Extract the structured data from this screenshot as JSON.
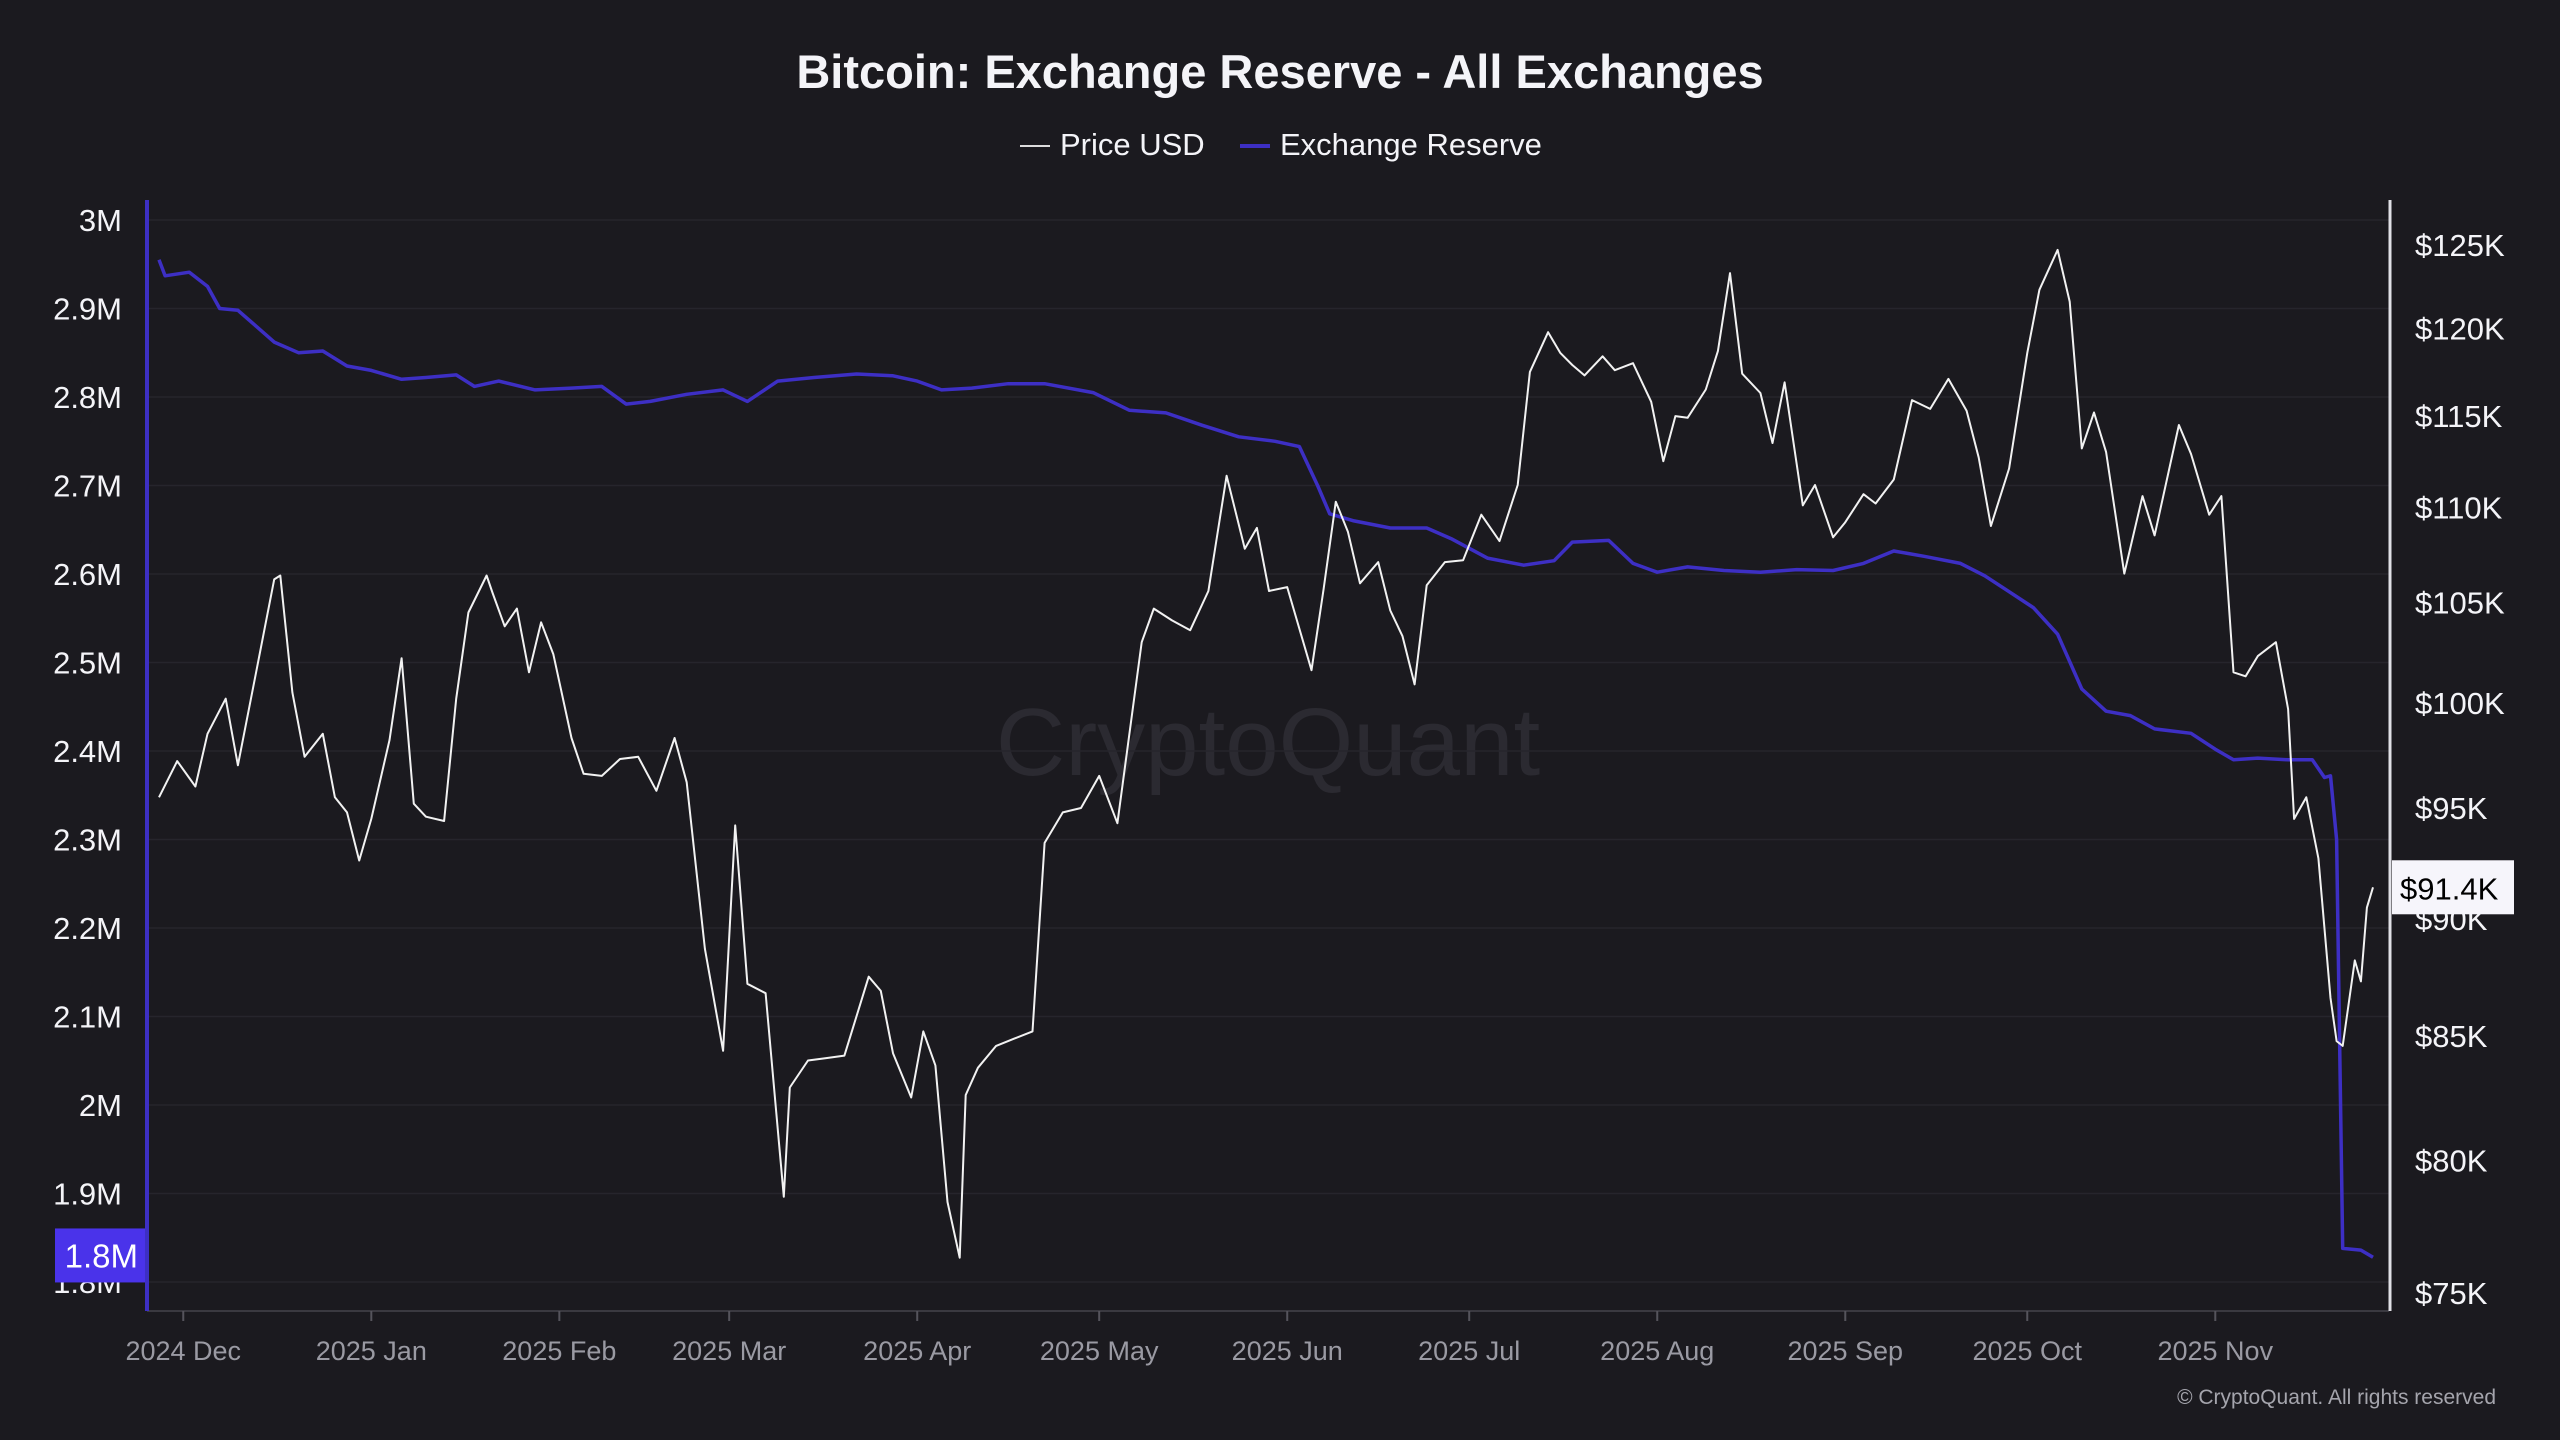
{
  "chart_data": {
    "type": "line",
    "title": "Bitcoin: Exchange Reserve - All Exchanges",
    "legend": {
      "placement": "top-center",
      "items": [
        "Price USD",
        "Exchange Reserve"
      ]
    },
    "watermark": "CryptoQuant",
    "copyright": "© CryptoQuant. All rights reserved",
    "colors": {
      "background": "#1b1a1f",
      "price": "#f2f2f2",
      "reserve": "#3d2fc4",
      "reserve_badge": "#4a33ea",
      "grid": "#2a2930"
    },
    "grid": true,
    "x_axis": {
      "range": [
        "2024-11-27",
        "2025-11-27"
      ],
      "ticks": [
        {
          "date": "2024-12-01",
          "label": "2024 Dec"
        },
        {
          "date": "2025-01-01",
          "label": "2025 Jan"
        },
        {
          "date": "2025-02-01",
          "label": "2025 Feb"
        },
        {
          "date": "2025-03-01",
          "label": "2025 Mar"
        },
        {
          "date": "2025-04-01",
          "label": "2025 Apr"
        },
        {
          "date": "2025-05-01",
          "label": "2025 May"
        },
        {
          "date": "2025-06-01",
          "label": "2025 Jun"
        },
        {
          "date": "2025-07-01",
          "label": "2025 Jul"
        },
        {
          "date": "2025-08-01",
          "label": "2025 Aug"
        },
        {
          "date": "2025-09-01",
          "label": "2025 Sep"
        },
        {
          "date": "2025-10-01",
          "label": "2025 Oct"
        },
        {
          "date": "2025-11-01",
          "label": "2025 Nov"
        }
      ]
    },
    "y_left": {
      "range": [
        1.78,
        3.02
      ],
      "scale": "linear",
      "unit": "M",
      "ticks": [
        "3M",
        "2.9M",
        "2.8M",
        "2.7M",
        "2.6M",
        "2.5M",
        "2.4M",
        "2.3M",
        "2.2M",
        "2.1M",
        "2M",
        "1.9M",
        "1.8M"
      ],
      "tick_values": [
        3,
        2.9,
        2.8,
        2.7,
        2.6,
        2.5,
        2.4,
        2.3,
        2.2,
        2.1,
        2,
        1.9,
        1.8
      ],
      "current_label": "1.8M",
      "current_value": 1.83
    },
    "y_right": {
      "range": [
        74.8,
        127
      ],
      "scale": "log",
      "unit": "K USD",
      "ticks": [
        "$125K",
        "$120K",
        "$115K",
        "$110K",
        "$105K",
        "$100K",
        "$95K",
        "$90K",
        "$85K",
        "$80K",
        "$75K"
      ],
      "tick_values": [
        125,
        120,
        115,
        110,
        105,
        100,
        95,
        90,
        85,
        80,
        75
      ],
      "current_label": "$91.4K",
      "current_value": 91.4
    },
    "series": [
      {
        "name": "Price USD",
        "axis": "right",
        "points": [
          [
            "2024-11-27",
            95.5
          ],
          [
            "2024-11-30",
            97.2
          ],
          [
            "2024-12-03",
            96.0
          ],
          [
            "2024-12-05",
            98.5
          ],
          [
            "2024-12-08",
            100.2
          ],
          [
            "2024-12-10",
            97.0
          ],
          [
            "2024-12-13",
            101.5
          ],
          [
            "2024-12-16",
            106.2
          ],
          [
            "2024-12-17",
            106.4
          ],
          [
            "2024-12-19",
            100.5
          ],
          [
            "2024-12-21",
            97.4
          ],
          [
            "2024-12-24",
            98.5
          ],
          [
            "2024-12-26",
            95.5
          ],
          [
            "2024-12-28",
            94.8
          ],
          [
            "2024-12-30",
            92.6
          ],
          [
            "2025-01-01",
            94.5
          ],
          [
            "2025-01-04",
            98.2
          ],
          [
            "2025-01-06",
            102.2
          ],
          [
            "2025-01-08",
            95.2
          ],
          [
            "2025-01-10",
            94.6
          ],
          [
            "2025-01-13",
            94.4
          ],
          [
            "2025-01-15",
            100.2
          ],
          [
            "2025-01-17",
            104.5
          ],
          [
            "2025-01-20",
            106.4
          ],
          [
            "2025-01-21",
            105.5
          ],
          [
            "2025-01-23",
            103.8
          ],
          [
            "2025-01-25",
            104.7
          ],
          [
            "2025-01-27",
            101.5
          ],
          [
            "2025-01-29",
            104.0
          ],
          [
            "2025-01-31",
            102.4
          ],
          [
            "2025-02-03",
            98.3
          ],
          [
            "2025-02-05",
            96.6
          ],
          [
            "2025-02-08",
            96.5
          ],
          [
            "2025-02-11",
            97.3
          ],
          [
            "2025-02-14",
            97.4
          ],
          [
            "2025-02-17",
            95.8
          ],
          [
            "2025-02-20",
            98.3
          ],
          [
            "2025-02-22",
            96.2
          ],
          [
            "2025-02-25",
            88.7
          ],
          [
            "2025-02-28",
            84.4
          ],
          [
            "2025-03-02",
            94.2
          ],
          [
            "2025-03-04",
            87.2
          ],
          [
            "2025-03-07",
            86.8
          ],
          [
            "2025-03-10",
            78.6
          ],
          [
            "2025-03-11",
            82.9
          ],
          [
            "2025-03-14",
            84.0
          ],
          [
            "2025-03-17",
            84.1
          ],
          [
            "2025-03-20",
            84.2
          ],
          [
            "2025-03-24",
            87.5
          ],
          [
            "2025-03-26",
            86.9
          ],
          [
            "2025-03-28",
            84.3
          ],
          [
            "2025-03-31",
            82.5
          ],
          [
            "2025-04-02",
            85.2
          ],
          [
            "2025-04-04",
            83.8
          ],
          [
            "2025-04-06",
            78.4
          ],
          [
            "2025-04-08",
            76.3
          ],
          [
            "2025-04-09",
            82.6
          ],
          [
            "2025-04-11",
            83.7
          ],
          [
            "2025-04-14",
            84.6
          ],
          [
            "2025-04-17",
            84.9
          ],
          [
            "2025-04-20",
            85.2
          ],
          [
            "2025-04-22",
            93.4
          ],
          [
            "2025-04-25",
            94.8
          ],
          [
            "2025-04-28",
            95.0
          ],
          [
            "2025-05-01",
            96.5
          ],
          [
            "2025-05-04",
            94.3
          ],
          [
            "2025-05-08",
            103.0
          ],
          [
            "2025-05-10",
            104.7
          ],
          [
            "2025-05-13",
            104.1
          ],
          [
            "2025-05-16",
            103.6
          ],
          [
            "2025-05-19",
            105.6
          ],
          [
            "2025-05-22",
            111.7
          ],
          [
            "2025-05-25",
            107.8
          ],
          [
            "2025-05-27",
            108.9
          ],
          [
            "2025-05-29",
            105.6
          ],
          [
            "2025-06-01",
            105.8
          ],
          [
            "2025-06-05",
            101.6
          ],
          [
            "2025-06-07",
            105.7
          ],
          [
            "2025-06-09",
            110.3
          ],
          [
            "2025-06-11",
            108.7
          ],
          [
            "2025-06-13",
            106.0
          ],
          [
            "2025-06-16",
            107.1
          ],
          [
            "2025-06-18",
            104.6
          ],
          [
            "2025-06-20",
            103.3
          ],
          [
            "2025-06-22",
            100.9
          ],
          [
            "2025-06-24",
            105.9
          ],
          [
            "2025-06-27",
            107.1
          ],
          [
            "2025-06-30",
            107.2
          ],
          [
            "2025-07-03",
            109.6
          ],
          [
            "2025-07-06",
            108.2
          ],
          [
            "2025-07-09",
            111.2
          ],
          [
            "2025-07-11",
            117.5
          ],
          [
            "2025-07-14",
            119.8
          ],
          [
            "2025-07-16",
            118.6
          ],
          [
            "2025-07-18",
            117.9
          ],
          [
            "2025-07-20",
            117.3
          ],
          [
            "2025-07-23",
            118.4
          ],
          [
            "2025-07-25",
            117.6
          ],
          [
            "2025-07-28",
            118.0
          ],
          [
            "2025-07-31",
            115.8
          ],
          [
            "2025-08-02",
            112.5
          ],
          [
            "2025-08-04",
            115.0
          ],
          [
            "2025-08-06",
            114.9
          ],
          [
            "2025-08-09",
            116.5
          ],
          [
            "2025-08-11",
            118.7
          ],
          [
            "2025-08-13",
            123.3
          ],
          [
            "2025-08-15",
            117.4
          ],
          [
            "2025-08-18",
            116.3
          ],
          [
            "2025-08-20",
            113.5
          ],
          [
            "2025-08-22",
            116.9
          ],
          [
            "2025-08-25",
            110.1
          ],
          [
            "2025-08-27",
            111.2
          ],
          [
            "2025-08-30",
            108.4
          ],
          [
            "2025-09-01",
            109.2
          ],
          [
            "2025-09-04",
            110.7
          ],
          [
            "2025-09-06",
            110.2
          ],
          [
            "2025-09-09",
            111.5
          ],
          [
            "2025-09-12",
            115.9
          ],
          [
            "2025-09-15",
            115.4
          ],
          [
            "2025-09-18",
            117.1
          ],
          [
            "2025-09-21",
            115.3
          ],
          [
            "2025-09-23",
            112.7
          ],
          [
            "2025-09-25",
            109.0
          ],
          [
            "2025-09-28",
            112.1
          ],
          [
            "2025-10-01",
            118.6
          ],
          [
            "2025-10-03",
            122.3
          ],
          [
            "2025-10-06",
            124.7
          ],
          [
            "2025-10-08",
            121.6
          ],
          [
            "2025-10-10",
            113.2
          ],
          [
            "2025-10-12",
            115.2
          ],
          [
            "2025-10-14",
            113.0
          ],
          [
            "2025-10-17",
            106.5
          ],
          [
            "2025-10-20",
            110.6
          ],
          [
            "2025-10-22",
            108.5
          ],
          [
            "2025-10-26",
            114.5
          ],
          [
            "2025-10-28",
            112.9
          ],
          [
            "2025-10-31",
            109.6
          ],
          [
            "2025-11-02",
            110.6
          ],
          [
            "2025-11-04",
            101.5
          ],
          [
            "2025-11-06",
            101.3
          ],
          [
            "2025-11-08",
            102.3
          ],
          [
            "2025-11-11",
            103.0
          ],
          [
            "2025-11-13",
            99.7
          ],
          [
            "2025-11-14",
            94.5
          ],
          [
            "2025-11-16",
            95.5
          ],
          [
            "2025-11-18",
            92.7
          ],
          [
            "2025-11-20",
            86.6
          ],
          [
            "2025-11-21",
            84.8
          ],
          [
            "2025-11-22",
            84.6
          ],
          [
            "2025-11-24",
            88.2
          ],
          [
            "2025-11-25",
            87.3
          ],
          [
            "2025-11-26",
            90.5
          ],
          [
            "2025-11-27",
            91.4
          ]
        ]
      },
      {
        "name": "Exchange Reserve",
        "axis": "left",
        "points": [
          [
            "2024-11-27",
            2.955
          ],
          [
            "2024-11-28",
            2.937
          ],
          [
            "2024-12-02",
            2.941
          ],
          [
            "2024-12-05",
            2.925
          ],
          [
            "2024-12-07",
            2.9
          ],
          [
            "2024-12-10",
            2.898
          ],
          [
            "2024-12-13",
            2.88
          ],
          [
            "2024-12-16",
            2.862
          ],
          [
            "2024-12-20",
            2.85
          ],
          [
            "2024-12-24",
            2.852
          ],
          [
            "2024-12-28",
            2.835
          ],
          [
            "2025-01-01",
            2.83
          ],
          [
            "2025-01-06",
            2.82
          ],
          [
            "2025-01-10",
            2.822
          ],
          [
            "2025-01-15",
            2.825
          ],
          [
            "2025-01-18",
            2.812
          ],
          [
            "2025-01-22",
            2.818
          ],
          [
            "2025-01-28",
            2.808
          ],
          [
            "2025-02-03",
            2.81
          ],
          [
            "2025-02-08",
            2.812
          ],
          [
            "2025-02-12",
            2.792
          ],
          [
            "2025-02-16",
            2.795
          ],
          [
            "2025-02-22",
            2.803
          ],
          [
            "2025-02-28",
            2.808
          ],
          [
            "2025-03-04",
            2.795
          ],
          [
            "2025-03-09",
            2.818
          ],
          [
            "2025-03-15",
            2.822
          ],
          [
            "2025-03-22",
            2.826
          ],
          [
            "2025-03-28",
            2.824
          ],
          [
            "2025-04-01",
            2.818
          ],
          [
            "2025-04-05",
            2.808
          ],
          [
            "2025-04-10",
            2.81
          ],
          [
            "2025-04-16",
            2.815
          ],
          [
            "2025-04-22",
            2.815
          ],
          [
            "2025-04-30",
            2.805
          ],
          [
            "2025-05-06",
            2.785
          ],
          [
            "2025-05-12",
            2.782
          ],
          [
            "2025-05-18",
            2.768
          ],
          [
            "2025-05-24",
            2.755
          ],
          [
            "2025-05-30",
            2.75
          ],
          [
            "2025-06-03",
            2.744
          ],
          [
            "2025-06-06",
            2.7
          ],
          [
            "2025-06-08",
            2.668
          ],
          [
            "2025-06-12",
            2.66
          ],
          [
            "2025-06-18",
            2.652
          ],
          [
            "2025-06-24",
            2.652
          ],
          [
            "2025-06-28",
            2.64
          ],
          [
            "2025-07-04",
            2.618
          ],
          [
            "2025-07-10",
            2.61
          ],
          [
            "2025-07-15",
            2.615
          ],
          [
            "2025-07-18",
            2.636
          ],
          [
            "2025-07-24",
            2.638
          ],
          [
            "2025-07-28",
            2.612
          ],
          [
            "2025-08-01",
            2.602
          ],
          [
            "2025-08-06",
            2.608
          ],
          [
            "2025-08-12",
            2.604
          ],
          [
            "2025-08-18",
            2.602
          ],
          [
            "2025-08-24",
            2.605
          ],
          [
            "2025-08-30",
            2.604
          ],
          [
            "2025-09-04",
            2.612
          ],
          [
            "2025-09-09",
            2.626
          ],
          [
            "2025-09-14",
            2.62
          ],
          [
            "2025-09-20",
            2.612
          ],
          [
            "2025-09-24",
            2.598
          ],
          [
            "2025-09-28",
            2.58
          ],
          [
            "2025-10-02",
            2.562
          ],
          [
            "2025-10-06",
            2.532
          ],
          [
            "2025-10-10",
            2.47
          ],
          [
            "2025-10-14",
            2.445
          ],
          [
            "2025-10-18",
            2.44
          ],
          [
            "2025-10-22",
            2.425
          ],
          [
            "2025-10-28",
            2.42
          ],
          [
            "2025-11-01",
            2.402
          ],
          [
            "2025-11-04",
            2.39
          ],
          [
            "2025-11-08",
            2.392
          ],
          [
            "2025-11-13",
            2.39
          ],
          [
            "2025-11-17",
            2.39
          ],
          [
            "2025-11-19",
            2.37
          ],
          [
            "2025-11-20",
            2.372
          ],
          [
            "2025-11-21",
            2.3
          ],
          [
            "2025-11-22",
            1.838
          ],
          [
            "2025-11-25",
            1.836
          ],
          [
            "2025-11-27",
            1.828
          ]
        ]
      }
    ]
  }
}
